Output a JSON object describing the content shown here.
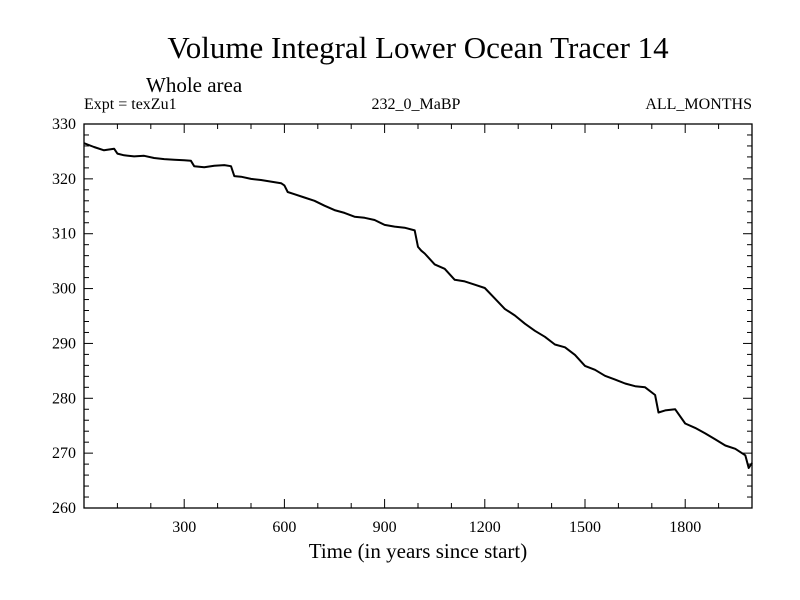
{
  "chart_data": {
    "type": "line",
    "title": "Volume Integral Lower Ocean Tracer 14",
    "subtitle": "Whole area",
    "left_label": "Expt = texZu1",
    "center_label": "232_0_MaBP",
    "right_label": "ALL_MONTHS",
    "xlabel": "Time (in years since start)",
    "ylabel": "",
    "xlim": [
      0,
      2000
    ],
    "ylim": [
      260,
      330
    ],
    "x_ticks": [
      300,
      600,
      900,
      1200,
      1500,
      1800
    ],
    "x_minor_step": 100,
    "y_ticks": [
      260,
      270,
      280,
      290,
      300,
      310,
      320,
      330
    ],
    "y_minor_step": 2,
    "grid": false,
    "legend": "none",
    "colors": {
      "line": "#000000",
      "axis": "#000000",
      "background": "#ffffff"
    },
    "series": [
      {
        "name": "Volume Integral Lower Ocean Tracer 14",
        "x": [
          0,
          30,
          60,
          90,
          100,
          120,
          150,
          180,
          210,
          240,
          270,
          300,
          320,
          330,
          360,
          390,
          420,
          440,
          450,
          470,
          500,
          530,
          560,
          590,
          600,
          610,
          630,
          660,
          690,
          720,
          750,
          780,
          810,
          840,
          870,
          900,
          930,
          960,
          990,
          1000,
          1010,
          1020,
          1050,
          1080,
          1110,
          1140,
          1170,
          1200,
          1230,
          1260,
          1290,
          1320,
          1350,
          1380,
          1410,
          1440,
          1470,
          1500,
          1530,
          1560,
          1590,
          1620,
          1650,
          1680,
          1710,
          1720,
          1740,
          1770,
          1800,
          1830,
          1860,
          1890,
          1920,
          1950,
          1980,
          1990,
          2000
        ],
        "y": [
          326.5,
          325.8,
          325.2,
          325.5,
          324.6,
          324.3,
          324.1,
          324.2,
          323.8,
          323.6,
          323.5,
          323.4,
          323.3,
          322.3,
          322.1,
          322.4,
          322.5,
          322.3,
          320.5,
          320.4,
          320.0,
          319.8,
          319.5,
          319.2,
          318.8,
          317.6,
          317.2,
          316.6,
          316.0,
          315.1,
          314.3,
          313.8,
          313.1,
          312.9,
          312.5,
          311.6,
          311.3,
          311.1,
          310.6,
          307.6,
          306.9,
          306.4,
          304.4,
          303.6,
          301.6,
          301.3,
          300.7,
          300.1,
          298.2,
          296.3,
          295.1,
          293.6,
          292.3,
          291.2,
          289.8,
          289.3,
          287.9,
          285.9,
          285.2,
          284.1,
          283.4,
          282.7,
          282.2,
          282.0,
          280.6,
          277.4,
          277.8,
          278.0,
          275.4,
          274.6,
          273.6,
          272.5,
          271.4,
          270.8,
          269.6,
          267.3,
          268.2
        ]
      }
    ]
  }
}
